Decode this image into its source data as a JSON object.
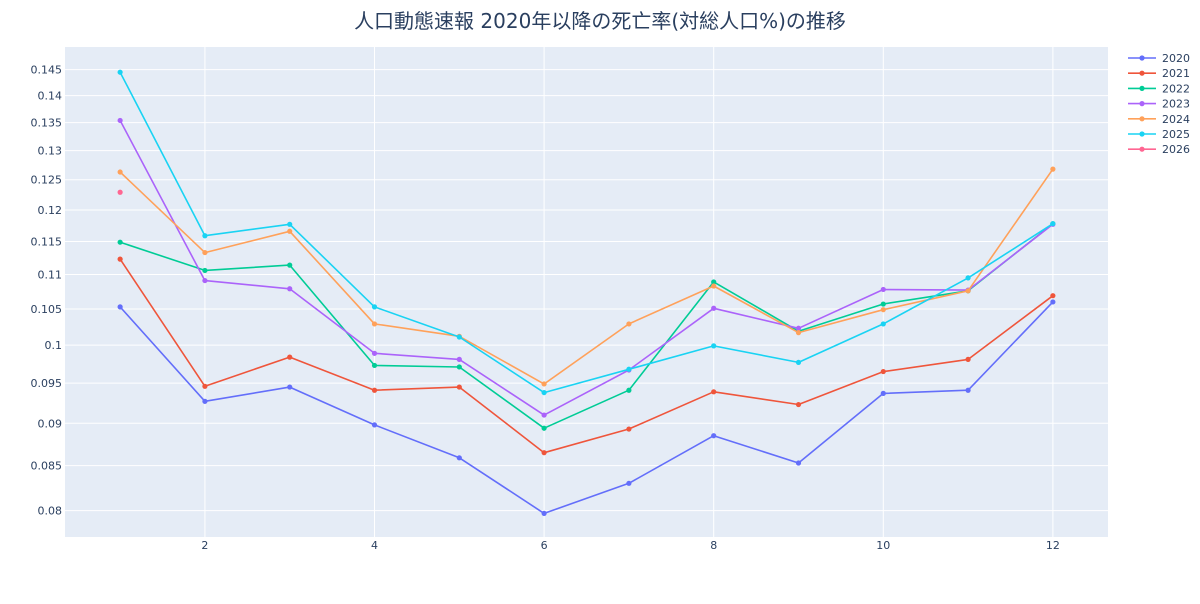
{
  "chart_data": {
    "type": "line",
    "title": "人口動態速報 2020年以降の死亡率(対総人口%)の推移",
    "xlabel": "",
    "ylabel": "",
    "x_ticks": [
      2,
      4,
      6,
      8,
      10,
      12
    ],
    "y_ticks": [
      0.08,
      0.085,
      0.09,
      0.095,
      0.1,
      0.105,
      0.11,
      0.115,
      0.12,
      0.125,
      0.13,
      0.135,
      0.14,
      0.145
    ],
    "y_tick_labels": [
      "0.08",
      "0.085",
      "0.09",
      "0.095",
      "0.1",
      "0.105",
      "0.11",
      "0.115",
      "0.12",
      "0.125",
      "0.13",
      "0.135",
      "0.14",
      "0.145"
    ],
    "xlim": [
      0.35,
      12.65
    ],
    "ylim": [
      0.0772,
      0.1495
    ],
    "y_scale": "log",
    "grid": true,
    "legend_position": "right",
    "plot_background": "#e5ecf6",
    "series": [
      {
        "name": "2020",
        "color": "#636efa",
        "x": [
          1,
          2,
          3,
          4,
          5,
          6,
          7,
          8,
          9,
          10,
          11,
          12
        ],
        "values": [
          0.1053,
          0.0927,
          0.0945,
          0.0898,
          0.0859,
          0.0797,
          0.083,
          0.0885,
          0.0853,
          0.0937,
          0.0941,
          0.106
        ]
      },
      {
        "name": "2021",
        "color": "#ef553b",
        "x": [
          1,
          2,
          3,
          4,
          5,
          6,
          7,
          8,
          9,
          10,
          11,
          12
        ],
        "values": [
          0.1123,
          0.0946,
          0.0984,
          0.0941,
          0.0945,
          0.0865,
          0.0893,
          0.0939,
          0.0923,
          0.0965,
          0.0981,
          0.1069
        ]
      },
      {
        "name": "2022",
        "color": "#00cc96",
        "x": [
          1,
          2,
          3,
          4,
          5,
          6,
          7,
          8,
          9,
          10,
          11,
          12
        ],
        "values": [
          0.1149,
          0.1106,
          0.1114,
          0.0973,
          0.0971,
          0.0894,
          0.0941,
          0.1089,
          0.1019,
          0.1057,
          0.1076,
          0.1178
        ]
      },
      {
        "name": "2023",
        "color": "#ab63fa",
        "x": [
          1,
          2,
          3,
          4,
          5,
          6,
          7,
          8,
          9,
          10,
          11,
          12
        ],
        "values": [
          0.1354,
          0.1091,
          0.1079,
          0.0989,
          0.0981,
          0.091,
          0.0967,
          0.1051,
          0.1023,
          0.1078,
          0.1077,
          0.1177
        ]
      },
      {
        "name": "2024",
        "color": "#ffa15a",
        "x": [
          1,
          2,
          3,
          4,
          5,
          6,
          7,
          8,
          9,
          10,
          11,
          12
        ],
        "values": [
          0.1263,
          0.1133,
          0.1166,
          0.1029,
          0.1012,
          0.0949,
          0.1029,
          0.1083,
          0.1017,
          0.1049,
          0.1076,
          0.1268
        ]
      },
      {
        "name": "2025",
        "color": "#19d3f3",
        "x": [
          1,
          2,
          3,
          4,
          5,
          6,
          7,
          8,
          9,
          10,
          11,
          12
        ],
        "values": [
          0.1445,
          0.1159,
          0.1177,
          0.1053,
          0.1011,
          0.0938,
          0.0968,
          0.0999,
          0.0977,
          0.1029,
          0.1095,
          0.1178
        ]
      },
      {
        "name": "2026",
        "color": "#ff6692",
        "x": [
          1
        ],
        "values": [
          0.1229
        ]
      }
    ]
  }
}
